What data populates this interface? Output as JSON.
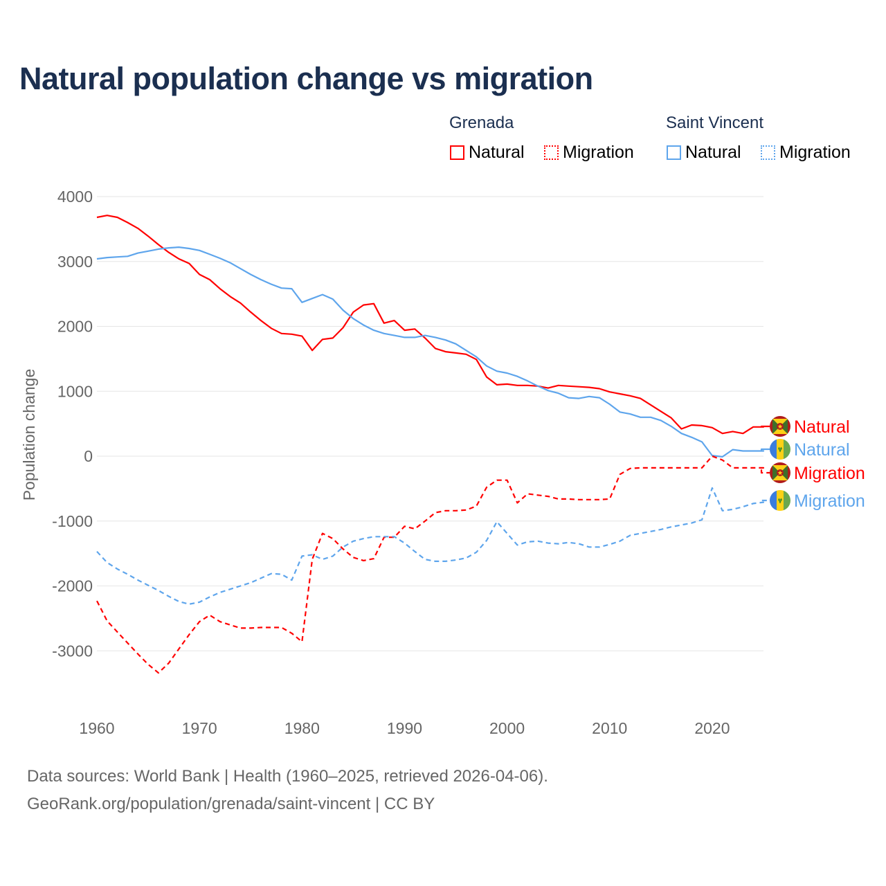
{
  "chart_data": {
    "type": "line",
    "title": "Natural population change vs migration",
    "xlabel": "",
    "ylabel": "Population change",
    "xlim": [
      1960,
      2025
    ],
    "ylim": [
      -4000,
      4000
    ],
    "x_ticks": [
      "1960",
      "1970",
      "1980",
      "1990",
      "2000",
      "2010",
      "2020"
    ],
    "y_ticks": [
      "4000",
      "3000",
      "2000",
      "1000",
      "0",
      "-1000",
      "-2000",
      "-3000"
    ],
    "grid": true,
    "legend": {
      "placement": "top-right",
      "groups": [
        {
          "name": "Grenada",
          "items": [
            "Natural",
            "Migration"
          ]
        },
        {
          "name": "Saint Vincent",
          "items": [
            "Natural",
            "Migration"
          ]
        }
      ]
    },
    "x": [
      1960,
      1961,
      1962,
      1963,
      1964,
      1965,
      1966,
      1967,
      1968,
      1969,
      1970,
      1971,
      1972,
      1973,
      1974,
      1975,
      1976,
      1977,
      1978,
      1979,
      1980,
      1981,
      1982,
      1983,
      1984,
      1985,
      1986,
      1987,
      1988,
      1989,
      1990,
      1991,
      1992,
      1993,
      1994,
      1995,
      1996,
      1997,
      1998,
      1999,
      2000,
      2001,
      2002,
      2003,
      2004,
      2005,
      2006,
      2007,
      2008,
      2009,
      2010,
      2011,
      2012,
      2013,
      2014,
      2015,
      2016,
      2017,
      2018,
      2019,
      2020,
      2021,
      2022,
      2023,
      2024,
      2025
    ],
    "series": [
      {
        "name": "Natural",
        "country": "Grenada",
        "color": "#ff0000",
        "dash": false,
        "values": [
          3680,
          3710,
          3680,
          3600,
          3510,
          3390,
          3260,
          3140,
          3040,
          2970,
          2800,
          2720,
          2580,
          2460,
          2360,
          2220,
          2090,
          1970,
          1890,
          1880,
          1850,
          1630,
          1800,
          1820,
          1980,
          2220,
          2330,
          2350,
          2050,
          2090,
          1940,
          1960,
          1820,
          1660,
          1610,
          1590,
          1570,
          1490,
          1220,
          1100,
          1110,
          1090,
          1090,
          1080,
          1050,
          1090,
          1080,
          1070,
          1060,
          1040,
          990,
          960,
          930,
          890,
          790,
          690,
          590,
          420,
          480,
          470,
          440,
          350,
          380,
          350,
          450,
          450
        ]
      },
      {
        "name": "Natural",
        "country": "Saint Vincent",
        "color": "#5ea5ec",
        "dash": false,
        "values": [
          3040,
          3060,
          3070,
          3080,
          3130,
          3160,
          3190,
          3210,
          3220,
          3200,
          3170,
          3110,
          3050,
          2980,
          2890,
          2800,
          2720,
          2650,
          2590,
          2580,
          2370,
          2430,
          2490,
          2420,
          2250,
          2120,
          2020,
          1940,
          1890,
          1860,
          1830,
          1830,
          1860,
          1830,
          1790,
          1730,
          1630,
          1530,
          1390,
          1310,
          1280,
          1230,
          1160,
          1080,
          1010,
          970,
          900,
          890,
          920,
          900,
          800,
          680,
          650,
          600,
          600,
          550,
          460,
          350,
          290,
          220,
          10,
          -10,
          100,
          80,
          80,
          80
        ]
      },
      {
        "name": "Migration",
        "country": "Grenada",
        "color": "#ff0000",
        "dash": true,
        "values": [
          -2230,
          -2540,
          -2710,
          -2880,
          -3050,
          -3210,
          -3340,
          -3190,
          -2970,
          -2750,
          -2550,
          -2450,
          -2550,
          -2600,
          -2650,
          -2650,
          -2640,
          -2640,
          -2640,
          -2730,
          -2860,
          -1590,
          -1190,
          -1270,
          -1430,
          -1560,
          -1610,
          -1580,
          -1250,
          -1250,
          -1080,
          -1120,
          -1000,
          -870,
          -840,
          -840,
          -830,
          -770,
          -480,
          -370,
          -370,
          -720,
          -580,
          -600,
          -620,
          -660,
          -660,
          -670,
          -670,
          -670,
          -660,
          -280,
          -190,
          -180,
          -180,
          -180,
          -180,
          -180,
          -180,
          -180,
          0,
          -60,
          -180,
          -180,
          -180,
          -180
        ]
      },
      {
        "name": "Migration",
        "country": "Saint Vincent",
        "color": "#5ea5ec",
        "dash": true,
        "values": [
          -1470,
          -1640,
          -1740,
          -1820,
          -1910,
          -1990,
          -2070,
          -2160,
          -2240,
          -2280,
          -2250,
          -2170,
          -2100,
          -2050,
          -2000,
          -1950,
          -1880,
          -1810,
          -1820,
          -1910,
          -1540,
          -1520,
          -1590,
          -1540,
          -1400,
          -1310,
          -1270,
          -1240,
          -1240,
          -1240,
          -1340,
          -1470,
          -1590,
          -1620,
          -1620,
          -1600,
          -1570,
          -1480,
          -1300,
          -1010,
          -1190,
          -1370,
          -1320,
          -1310,
          -1340,
          -1350,
          -1330,
          -1350,
          -1400,
          -1400,
          -1360,
          -1310,
          -1220,
          -1190,
          -1160,
          -1130,
          -1090,
          -1060,
          -1030,
          -980,
          -490,
          -840,
          -820,
          -780,
          -730,
          -710
        ]
      }
    ],
    "end_labels": [
      {
        "text": "Natural",
        "flag": "grenada-flag",
        "color": "#ff0000"
      },
      {
        "text": "Natural",
        "flag": "saint-vincent-flag",
        "color": "#5ea5ec"
      },
      {
        "text": "Migration",
        "flag": "grenada-flag",
        "color": "#ff0000"
      },
      {
        "text": "Migration",
        "flag": "saint-vincent-flag",
        "color": "#5ea5ec"
      }
    ]
  },
  "footer": {
    "line1": "Data sources: World Bank | Health (1960–2025, retrieved 2026-04-06).",
    "line2": "GeoRank.org/population/grenada/saint-vincent | CC BY"
  }
}
